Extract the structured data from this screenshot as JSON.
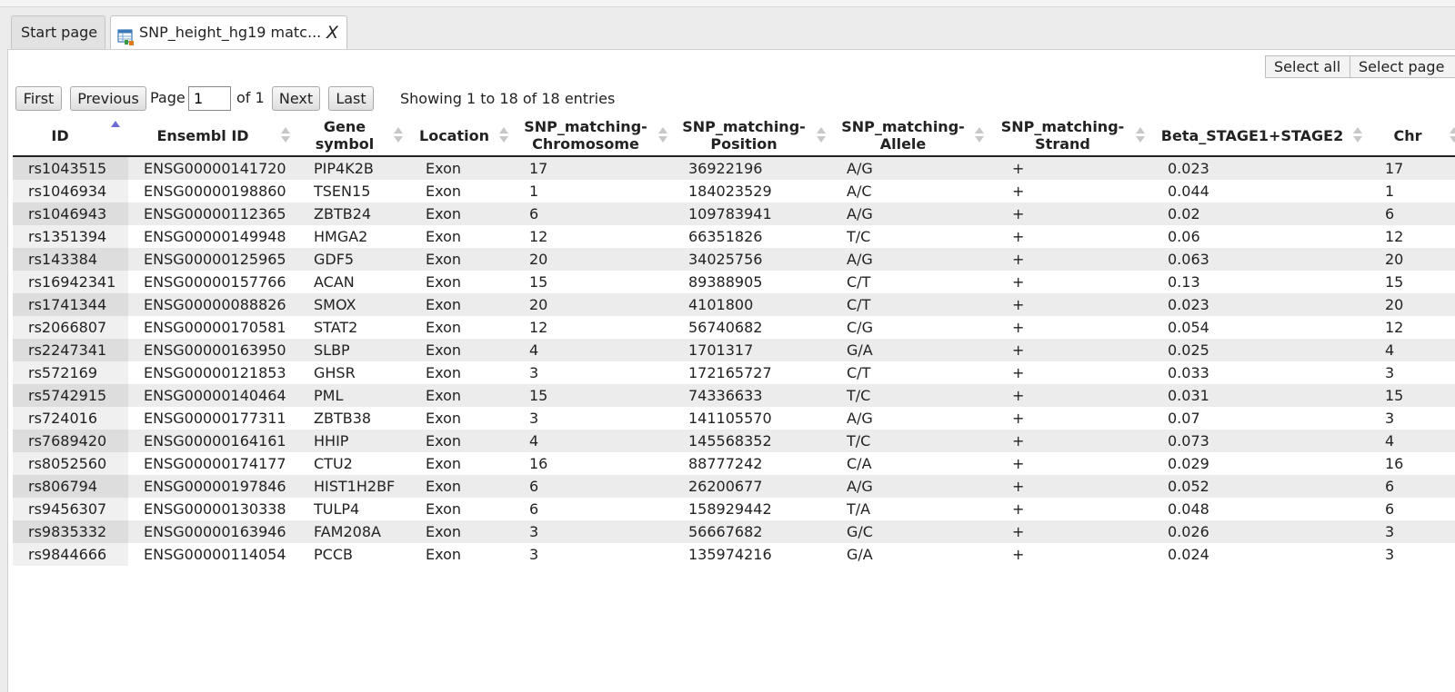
{
  "tabs": [
    {
      "label": "Start page",
      "active": false
    },
    {
      "label": "SNP_height_hg19 matc...",
      "active": true,
      "close": "X"
    }
  ],
  "selection": {
    "select_all": "Select all",
    "select_page": "Select page"
  },
  "pager": {
    "first": "First",
    "previous": "Previous",
    "page_label": "Page",
    "page_value": "1",
    "of_label": "of 1",
    "next": "Next",
    "last": "Last",
    "info": "Showing 1 to 18 of 18 entries"
  },
  "table": {
    "columns": [
      {
        "key": "id",
        "lines": [
          "ID"
        ],
        "sort": "asc"
      },
      {
        "key": "ensembl",
        "lines": [
          "Ensembl ID"
        ],
        "sort": "none"
      },
      {
        "key": "gene",
        "lines": [
          "Gene",
          "symbol"
        ],
        "sort": "none"
      },
      {
        "key": "location",
        "lines": [
          "Location"
        ],
        "sort": "none"
      },
      {
        "key": "chrom",
        "lines": [
          "SNP_matching-",
          "Chromosome"
        ],
        "sort": "none"
      },
      {
        "key": "pos",
        "lines": [
          "SNP_matching-",
          "Position"
        ],
        "sort": "none"
      },
      {
        "key": "allele",
        "lines": [
          "SNP_matching-",
          "Allele"
        ],
        "sort": "none"
      },
      {
        "key": "strand",
        "lines": [
          "SNP_matching-",
          "Strand"
        ],
        "sort": "none"
      },
      {
        "key": "beta",
        "lines": [
          "Beta_STAGE1+STAGE2"
        ],
        "sort": "none"
      },
      {
        "key": "chr",
        "lines": [
          "Chr"
        ],
        "sort": "none"
      }
    ],
    "rows": [
      [
        "rs1043515",
        "ENSG00000141720",
        "PIP4K2B",
        "Exon",
        "17",
        "36922196",
        "A/G",
        "+",
        "0.023",
        "17"
      ],
      [
        "rs1046934",
        "ENSG00000198860",
        "TSEN15",
        "Exon",
        "1",
        "184023529",
        "A/C",
        "+",
        "0.044",
        "1"
      ],
      [
        "rs1046943",
        "ENSG00000112365",
        "ZBTB24",
        "Exon",
        "6",
        "109783941",
        "A/G",
        "+",
        "0.02",
        "6"
      ],
      [
        "rs1351394",
        "ENSG00000149948",
        "HMGA2",
        "Exon",
        "12",
        "66351826",
        "T/C",
        "+",
        "0.06",
        "12"
      ],
      [
        "rs143384",
        "ENSG00000125965",
        "GDF5",
        "Exon",
        "20",
        "34025756",
        "A/G",
        "+",
        "0.063",
        "20"
      ],
      [
        "rs16942341",
        "ENSG00000157766",
        "ACAN",
        "Exon",
        "15",
        "89388905",
        "C/T",
        "+",
        "0.13",
        "15"
      ],
      [
        "rs1741344",
        "ENSG00000088826",
        "SMOX",
        "Exon",
        "20",
        "4101800",
        "C/T",
        "+",
        "0.023",
        "20"
      ],
      [
        "rs2066807",
        "ENSG00000170581",
        "STAT2",
        "Exon",
        "12",
        "56740682",
        "C/G",
        "+",
        "0.054",
        "12"
      ],
      [
        "rs2247341",
        "ENSG00000163950",
        "SLBP",
        "Exon",
        "4",
        "1701317",
        "G/A",
        "+",
        "0.025",
        "4"
      ],
      [
        "rs572169",
        "ENSG00000121853",
        "GHSR",
        "Exon",
        "3",
        "172165727",
        "C/T",
        "+",
        "0.033",
        "3"
      ],
      [
        "rs5742915",
        "ENSG00000140464",
        "PML",
        "Exon",
        "15",
        "74336633",
        "T/C",
        "+",
        "0.031",
        "15"
      ],
      [
        "rs724016",
        "ENSG00000177311",
        "ZBTB38",
        "Exon",
        "3",
        "141105570",
        "A/G",
        "+",
        "0.07",
        "3"
      ],
      [
        "rs7689420",
        "ENSG00000164161",
        "HHIP",
        "Exon",
        "4",
        "145568352",
        "T/C",
        "+",
        "0.073",
        "4"
      ],
      [
        "rs8052560",
        "ENSG00000174177",
        "CTU2",
        "Exon",
        "16",
        "88777242",
        "C/A",
        "+",
        "0.029",
        "16"
      ],
      [
        "rs806794",
        "ENSG00000197846",
        "HIST1H2BF",
        "Exon",
        "6",
        "26200677",
        "A/G",
        "+",
        "0.052",
        "6"
      ],
      [
        "rs9456307",
        "ENSG00000130338",
        "TULP4",
        "Exon",
        "6",
        "158929442",
        "T/A",
        "+",
        "0.048",
        "6"
      ],
      [
        "rs9835332",
        "ENSG00000163946",
        "FAM208A",
        "Exon",
        "3",
        "56667682",
        "G/C",
        "+",
        "0.026",
        "3"
      ],
      [
        "rs9844666",
        "ENSG00000114054",
        "PCCB",
        "Exon",
        "3",
        "135974216",
        "G/A",
        "+",
        "0.024",
        "3"
      ]
    ]
  }
}
